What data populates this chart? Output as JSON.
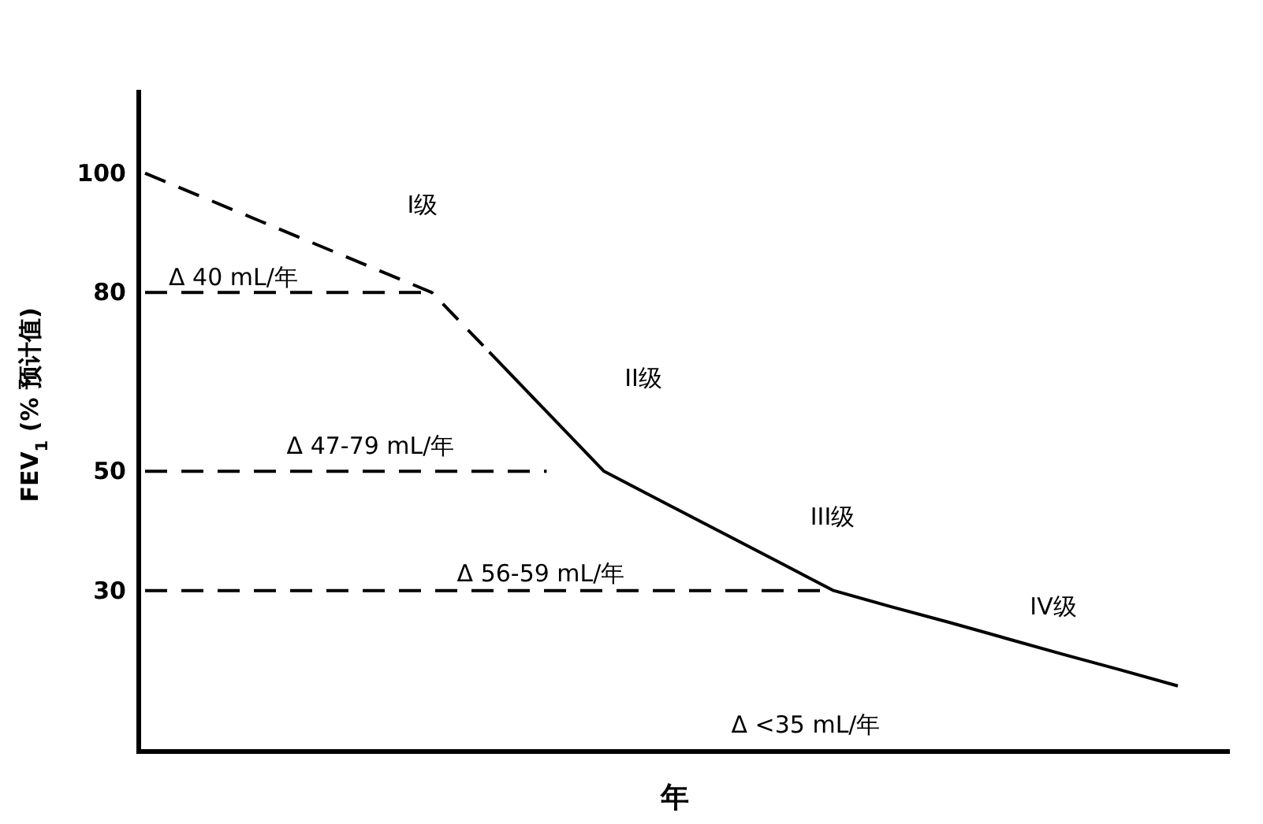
{
  "chart_data": {
    "type": "line",
    "xlabel": "年",
    "ylabel": "FEV$_{1}$ (% 预计值)",
    "categories": [
      null,
      null,
      null,
      null,
      null,
      null,
      null,
      null,
      null,
      null,
      null,
      null,
      null,
      null,
      null,
      null,
      null,
      null,
      null
    ],
    "ylim": [
      3,
      114
    ],
    "yticks": [
      30,
      50,
      80,
      100
    ],
    "tick_labels": "y",
    "grid": false,
    "marker": "none",
    "series": [
      {
        "color": "#000000",
        "line_style": "dashed",
        "values": [
          100,
          96,
          92,
          88,
          84,
          80,
          70,
          null,
          null,
          null,
          null,
          null,
          null,
          null,
          null,
          null,
          null,
          null,
          null
        ]
      },
      {
        "color": "#000000",
        "line_style": "solid",
        "values": [
          null,
          null,
          null,
          null,
          null,
          null,
          70,
          60,
          50,
          45,
          40,
          35,
          30,
          27.3,
          24.7,
          22,
          19.3,
          16.7,
          14
        ]
      },
      {
        "color": "#000000",
        "line_style": "dashed",
        "values": [
          80,
          80,
          80,
          80,
          80,
          80,
          null,
          null,
          null,
          null,
          null,
          null,
          null,
          null,
          null,
          null,
          null,
          null,
          null
        ]
      },
      {
        "color": "#000000",
        "line_style": "dashed",
        "values": [
          50,
          50,
          50,
          50,
          50,
          50,
          50,
          50,
          null,
          null,
          null,
          null,
          null,
          null,
          null,
          null,
          null,
          null,
          null
        ]
      },
      {
        "color": "#000000",
        "line_style": "dashed",
        "values": [
          30,
          30,
          30,
          30,
          30,
          30,
          30,
          30,
          30,
          30,
          30,
          30,
          30,
          null,
          null,
          null,
          null,
          null,
          null
        ]
      }
    ],
    "annotations": [
      "I级",
      "II级",
      "III级",
      "IV级",
      "Δ 40 mL/年",
      "Δ 47-79 mL/年",
      "Δ 56-59 mL/年",
      "Δ <35 mL/年"
    ]
  }
}
